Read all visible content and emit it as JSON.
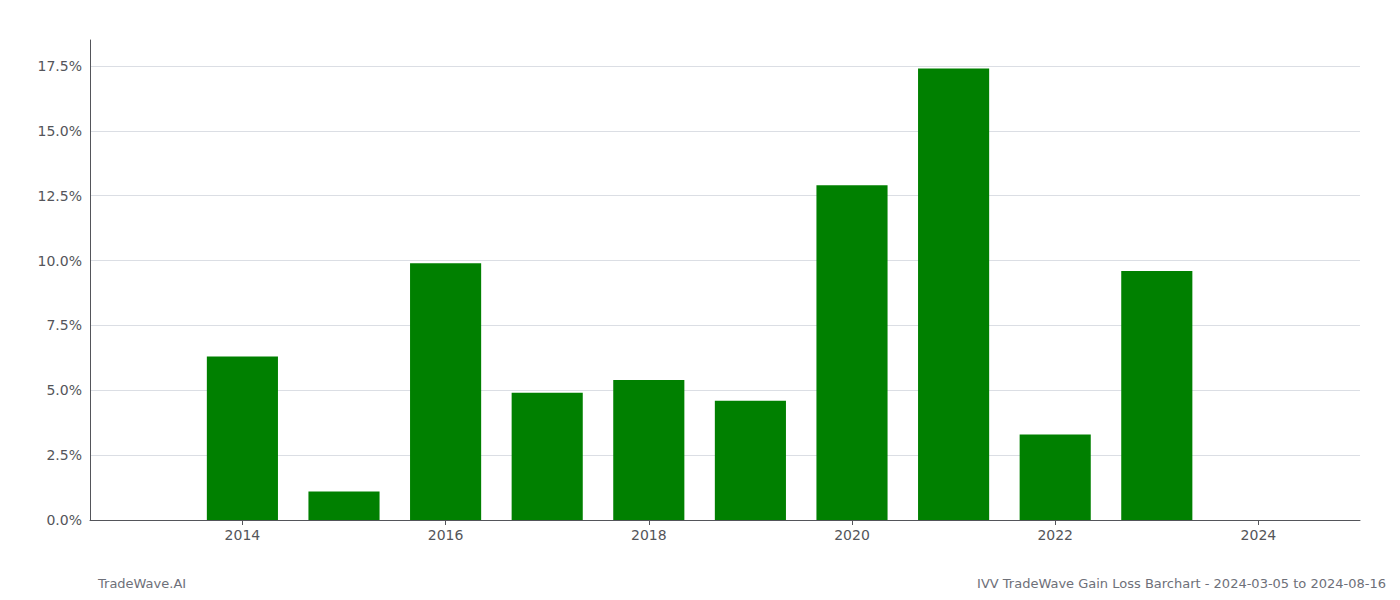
{
  "chart_data": {
    "type": "bar",
    "x": [
      2014,
      2015,
      2016,
      2017,
      2018,
      2019,
      2020,
      2021,
      2022,
      2023
    ],
    "values": [
      0.063,
      0.011,
      0.099,
      0.049,
      0.054,
      0.046,
      0.129,
      0.174,
      0.033,
      0.096
    ],
    "color": "#008000",
    "xlim": [
      2012.5,
      2025.0
    ],
    "xticks": [
      2014,
      2016,
      2018,
      2020,
      2022,
      2024
    ],
    "ylim": [
      0.0,
      0.185
    ],
    "yticks": [
      {
        "value": 0.0,
        "label": "0.0%"
      },
      {
        "value": 0.025,
        "label": "2.5%"
      },
      {
        "value": 0.05,
        "label": "5.0%"
      },
      {
        "value": 0.075,
        "label": "7.5%"
      },
      {
        "value": 0.1,
        "label": "10.0%"
      },
      {
        "value": 0.125,
        "label": "12.5%"
      },
      {
        "value": 0.15,
        "label": "15.0%"
      },
      {
        "value": 0.175,
        "label": "17.5%"
      }
    ],
    "grid": true,
    "annotations": [
      "TradeWave.AI",
      "IVV TradeWave Gain Loss Barchart - 2024-03-05 to 2024-08-16"
    ]
  }
}
